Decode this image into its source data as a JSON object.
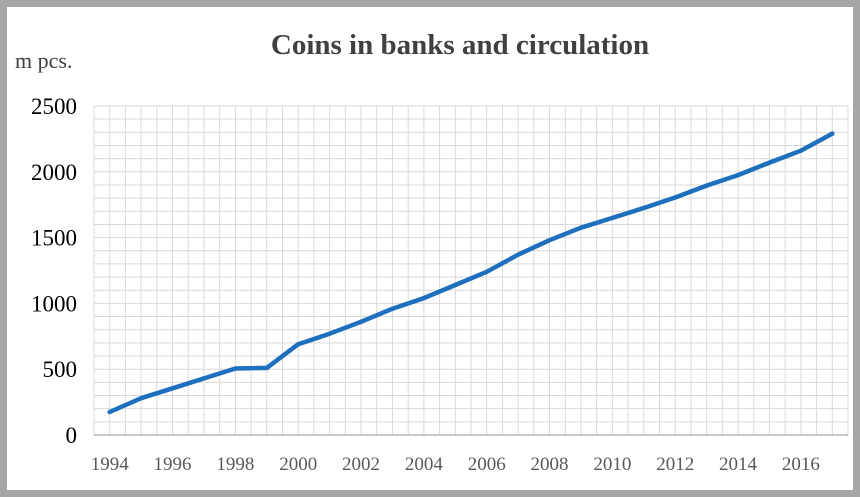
{
  "chart_data": {
    "type": "line",
    "title": "Coins in banks and circulation",
    "unit_label": "m pcs.",
    "xlabel": "",
    "ylabel": "m pcs.",
    "ylim": [
      0,
      2500
    ],
    "yticks": [
      "0",
      "500",
      "1000",
      "1500",
      "2000",
      "2500"
    ],
    "x_tick_labels": [
      "1994",
      "1996",
      "1998",
      "2000",
      "2002",
      "2004",
      "2006",
      "2008",
      "2010",
      "2012",
      "2014",
      "2016"
    ],
    "grid": true,
    "legend": "none",
    "line_color": "#1f6fbf",
    "series": [
      {
        "x": [
          1994,
          1995,
          1996,
          1997,
          1998,
          1999,
          2000,
          2001,
          2002,
          2003,
          2004,
          2005,
          2006,
          2007,
          2008,
          2009,
          2010,
          2011,
          2012,
          2013,
          2014,
          2015,
          2016,
          2017
        ],
        "values": [
          175,
          280,
          355,
          430,
          505,
          510,
          690,
          770,
          860,
          960,
          1040,
          1140,
          1240,
          1370,
          1480,
          1575,
          1650,
          1725,
          1805,
          1895,
          1975,
          2070,
          2160,
          2290
        ]
      }
    ]
  }
}
